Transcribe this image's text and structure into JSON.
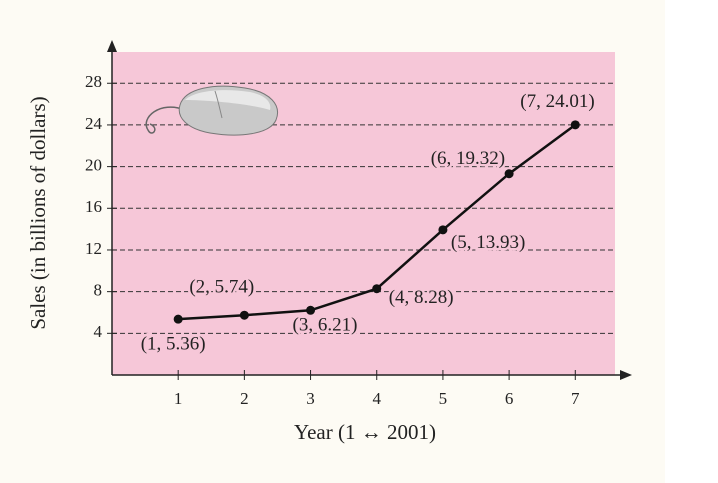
{
  "chart_data": {
    "type": "line",
    "x_label": "Year (1 ↔ 2001)",
    "y_label": "Sales (in billions of dollars)",
    "x": [
      1,
      2,
      3,
      4,
      5,
      6,
      7
    ],
    "values": [
      5.36,
      5.74,
      6.21,
      8.28,
      13.93,
      19.32,
      24.01
    ],
    "value_labels": [
      "(1, 5.36)",
      "(2, 5.74)",
      "(3, 6.21)",
      "(4, 8.28)",
      "(5, 13.93)",
      "(6, 19.32)",
      "(7, 24.01)"
    ],
    "color": "#111111",
    "xlim": [
      0,
      7.6
    ],
    "xticks": [
      1,
      2,
      3,
      4,
      5,
      6,
      7
    ],
    "ylim": [
      0,
      31
    ],
    "yticks": [
      4,
      8,
      12,
      16,
      20,
      24,
      28
    ],
    "grid": true
  }
}
